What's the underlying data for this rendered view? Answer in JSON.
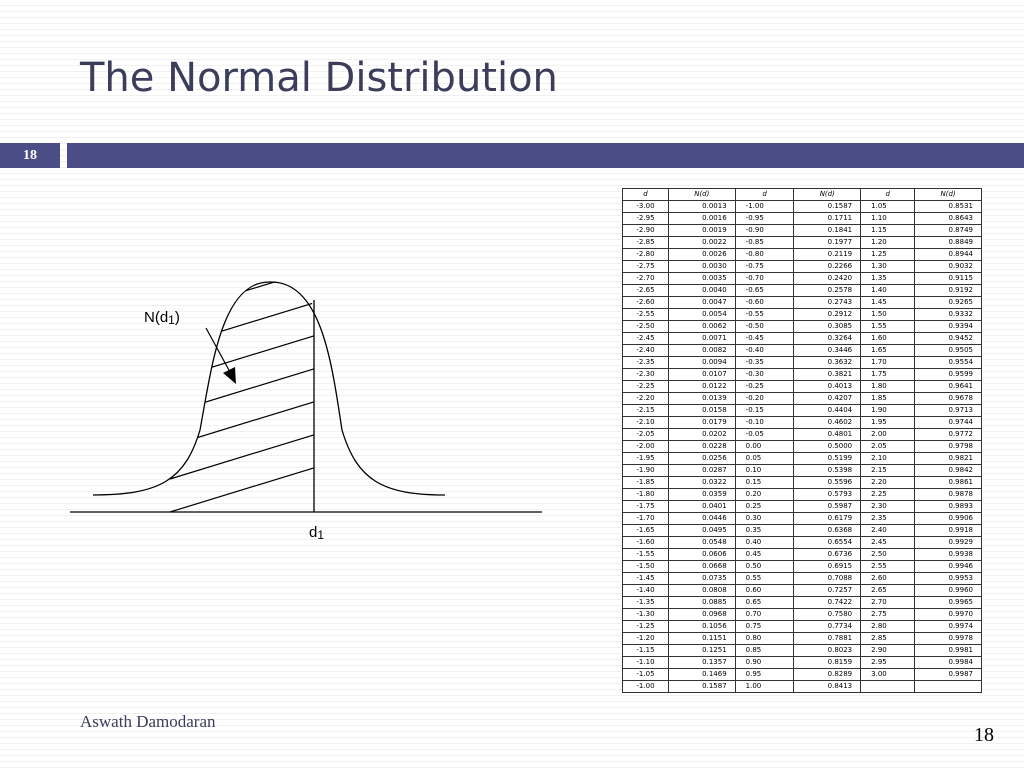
{
  "slide": {
    "title": "The Normal Distribution",
    "tab_number": "18",
    "footer_author": "Aswath Damodaran",
    "footer_page": "18"
  },
  "diagram": {
    "label_area": "N(d",
    "label_area_sub": "1",
    "label_area_close": ")",
    "label_cutoff": "d",
    "label_cutoff_sub": "1"
  },
  "table": {
    "headers": [
      "d",
      "N(d)",
      "d",
      "N(d)",
      "d",
      "N(d)"
    ],
    "rows": [
      [
        "-3.00",
        "0.0013",
        "-1.00",
        "0.1587",
        "1.05",
        "0.8531"
      ],
      [
        "-2.95",
        "0.0016",
        "-0.95",
        "0.1711",
        "1.10",
        "0.8643"
      ],
      [
        "-2.90",
        "0.0019",
        "-0.90",
        "0.1841",
        "1.15",
        "0.8749"
      ],
      [
        "-2.85",
        "0.0022",
        "-0.85",
        "0.1977",
        "1.20",
        "0.8849"
      ],
      [
        "-2.80",
        "0.0026",
        "-0.80",
        "0.2119",
        "1.25",
        "0.8944"
      ],
      [
        "-2.75",
        "0.0030",
        "-0.75",
        "0.2266",
        "1.30",
        "0.9032"
      ],
      [
        "-2.70",
        "0.0035",
        "-0.70",
        "0.2420",
        "1.35",
        "0.9115"
      ],
      [
        "-2.65",
        "0.0040",
        "-0.65",
        "0.2578",
        "1.40",
        "0.9192"
      ],
      [
        "-2.60",
        "0.0047",
        "-0.60",
        "0.2743",
        "1.45",
        "0.9265"
      ],
      [
        "-2.55",
        "0.0054",
        "-0.55",
        "0.2912",
        "1.50",
        "0.9332"
      ],
      [
        "-2.50",
        "0.0062",
        "-0.50",
        "0.3085",
        "1.55",
        "0.9394"
      ],
      [
        "-2.45",
        "0.0071",
        "-0.45",
        "0.3264",
        "1.60",
        "0.9452"
      ],
      [
        "-2.40",
        "0.0082",
        "-0.40",
        "0.3446",
        "1.65",
        "0.9505"
      ],
      [
        "-2.35",
        "0.0094",
        "-0.35",
        "0.3632",
        "1.70",
        "0.9554"
      ],
      [
        "-2.30",
        "0.0107",
        "-0.30",
        "0.3821",
        "1.75",
        "0.9599"
      ],
      [
        "-2.25",
        "0.0122",
        "-0.25",
        "0.4013",
        "1.80",
        "0.9641"
      ],
      [
        "-2.20",
        "0.0139",
        "-0.20",
        "0.4207",
        "1.85",
        "0.9678"
      ],
      [
        "-2.15",
        "0.0158",
        "-0.15",
        "0.4404",
        "1.90",
        "0.9713"
      ],
      [
        "-2.10",
        "0.0179",
        "-0.10",
        "0.4602",
        "1.95",
        "0.9744"
      ],
      [
        "-2.05",
        "0.0202",
        "-0.05",
        "0.4801",
        "2.00",
        "0.9772"
      ],
      [
        "-2.00",
        "0.0228",
        "0.00",
        "0.5000",
        "2.05",
        "0.9798"
      ],
      [
        "-1.95",
        "0.0256",
        "0.05",
        "0.5199",
        "2.10",
        "0.9821"
      ],
      [
        "-1.90",
        "0.0287",
        "0.10",
        "0.5398",
        "2.15",
        "0.9842"
      ],
      [
        "-1.85",
        "0.0322",
        "0.15",
        "0.5596",
        "2.20",
        "0.9861"
      ],
      [
        "-1.80",
        "0.0359",
        "0.20",
        "0.5793",
        "2.25",
        "0.9878"
      ],
      [
        "-1.75",
        "0.0401",
        "0.25",
        "0.5987",
        "2.30",
        "0.9893"
      ],
      [
        "-1.70",
        "0.0446",
        "0.30",
        "0.6179",
        "2.35",
        "0.9906"
      ],
      [
        "-1.65",
        "0.0495",
        "0.35",
        "0.6368",
        "2.40",
        "0.9918"
      ],
      [
        "-1.60",
        "0.0548",
        "0.40",
        "0.6554",
        "2.45",
        "0.9929"
      ],
      [
        "-1.55",
        "0.0606",
        "0.45",
        "0.6736",
        "2.50",
        "0.9938"
      ],
      [
        "-1.50",
        "0.0668",
        "0.50",
        "0.6915",
        "2.55",
        "0.9946"
      ],
      [
        "-1.45",
        "0.0735",
        "0.55",
        "0.7088",
        "2.60",
        "0.9953"
      ],
      [
        "-1.40",
        "0.0808",
        "0.60",
        "0.7257",
        "2.65",
        "0.9960"
      ],
      [
        "-1.35",
        "0.0885",
        "0.65",
        "0.7422",
        "2.70",
        "0.9965"
      ],
      [
        "-1.30",
        "0.0968",
        "0.70",
        "0.7580",
        "2.75",
        "0.9970"
      ],
      [
        "-1.25",
        "0.1056",
        "0.75",
        "0.7734",
        "2.80",
        "0.9974"
      ],
      [
        "-1.20",
        "0.1151",
        "0.80",
        "0.7881",
        "2.85",
        "0.9978"
      ],
      [
        "-1.15",
        "0.1251",
        "0.85",
        "0.8023",
        "2.90",
        "0.9981"
      ],
      [
        "-1.10",
        "0.1357",
        "0.90",
        "0.8159",
        "2.95",
        "0.9984"
      ],
      [
        "-1.05",
        "0.1469",
        "0.95",
        "0.8289",
        "3.00",
        "0.9987"
      ],
      [
        "-1.00",
        "0.1587",
        "1.00",
        "0.8413",
        "",
        ""
      ]
    ]
  }
}
